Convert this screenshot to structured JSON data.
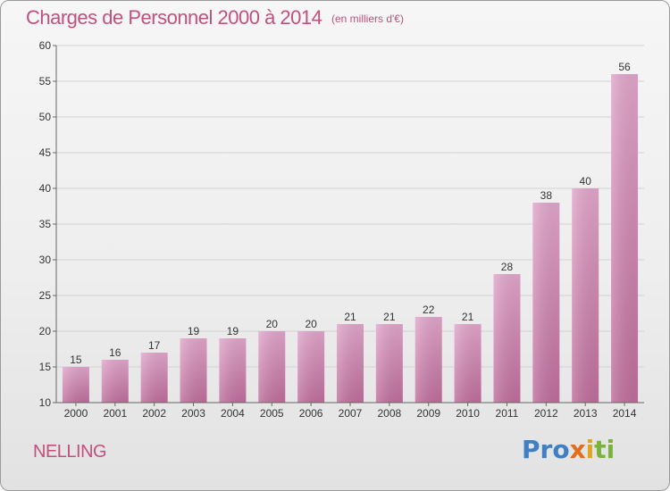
{
  "title": "Charges de Personnel 2000 à 2014",
  "unit": "(en milliers d'€)",
  "commune": "NELLING",
  "logo": {
    "p1": "Pro",
    "p2": "x",
    "p3": "i",
    "p4": "ti"
  },
  "colors": {
    "title": "#c2507e",
    "bar_top": "#e2a6cb",
    "bar_bottom": "#bf6e9c"
  },
  "chart_data": {
    "type": "bar",
    "categories": [
      "2000",
      "2001",
      "2002",
      "2003",
      "2004",
      "2005",
      "2006",
      "2007",
      "2008",
      "2009",
      "2010",
      "2011",
      "2012",
      "2013",
      "2014"
    ],
    "values": [
      15,
      16,
      17,
      19,
      19,
      20,
      20,
      21,
      21,
      22,
      21,
      28,
      38,
      40,
      56
    ],
    "yticks": [
      10,
      15,
      20,
      25,
      30,
      35,
      40,
      45,
      50,
      55,
      60
    ],
    "ylim": [
      10,
      60
    ],
    "grid": "horizontal",
    "data_labels": true
  }
}
